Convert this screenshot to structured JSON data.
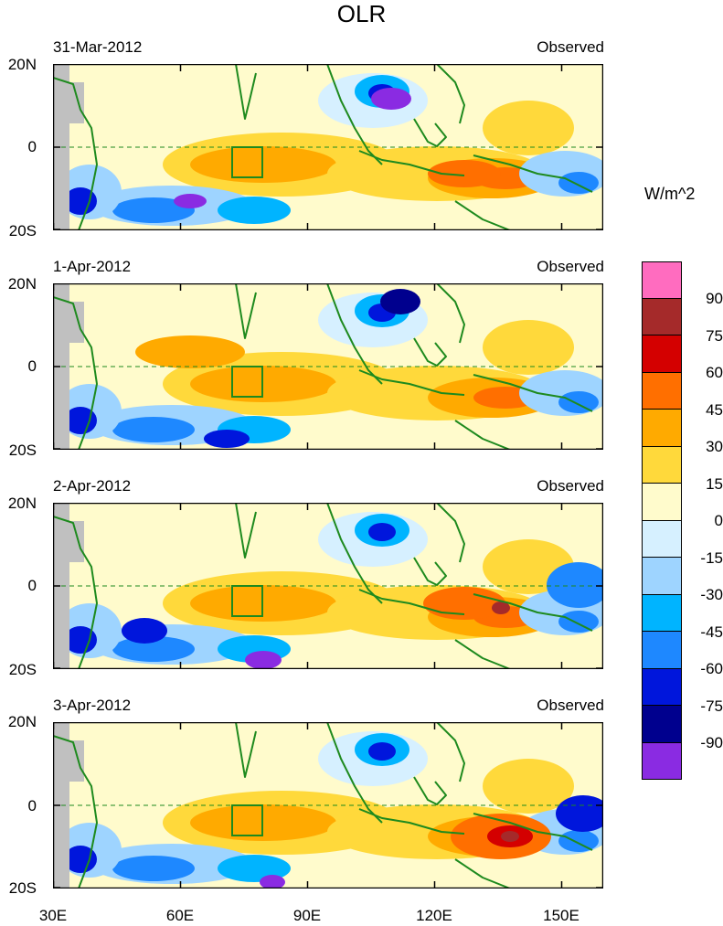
{
  "title": "OLR",
  "units": "W/m^2",
  "panels": [
    {
      "date": "31-Mar-2012",
      "label": "Observed"
    },
    {
      "date": "1-Apr-2012",
      "label": "Observed"
    },
    {
      "date": "2-Apr-2012",
      "label": "Observed"
    },
    {
      "date": "3-Apr-2012",
      "label": "Observed"
    }
  ],
  "lat_ticks": [
    "20N",
    "0",
    "20S"
  ],
  "lon_ticks": [
    "30E",
    "60E",
    "90E",
    "120E",
    "150E"
  ],
  "colorbar": {
    "levels": [
      "90",
      "75",
      "60",
      "45",
      "30",
      "15",
      "0",
      "-15",
      "-30",
      "-45",
      "-60",
      "-75",
      "-90"
    ],
    "colors": [
      "#ff6cbf",
      "#a52a2a",
      "#d40000",
      "#ff6f00",
      "#ffaa00",
      "#ffd93b",
      "#fffbcc",
      "#d6f0ff",
      "#9ed4ff",
      "#00b4ff",
      "#1e88ff",
      "#0016dc",
      "#00008e",
      "#8a2be2"
    ]
  }
}
